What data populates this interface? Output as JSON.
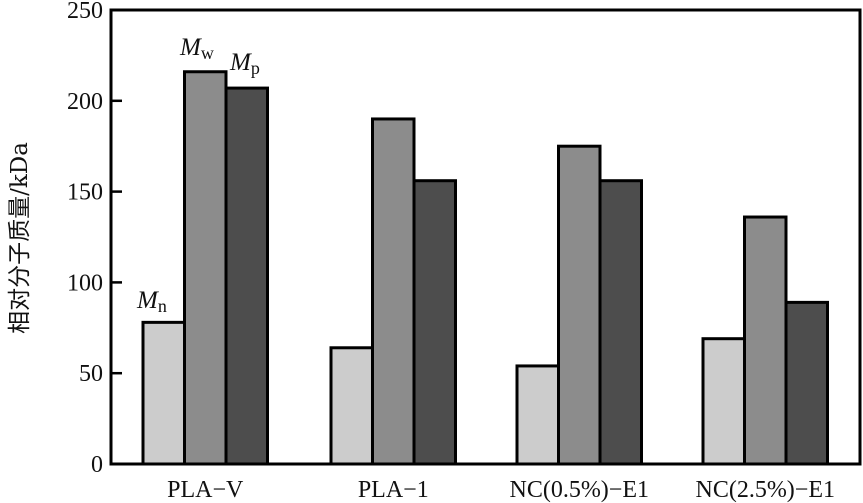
{
  "chart_data": {
    "type": "bar",
    "title": "",
    "xlabel": "",
    "ylabel": "相对分子质量/kDa",
    "ylim": [
      0,
      250
    ],
    "yticks": [
      0,
      50,
      100,
      150,
      200,
      250
    ],
    "grid": false,
    "categories": [
      "PLA−V",
      "PLA−1",
      "NC(0.5%)−E1",
      "NC(2.5%)−E1"
    ],
    "series": [
      {
        "name": "Mn",
        "symbol": "M",
        "subscript": "n",
        "color": "#cccccc",
        "values": [
          78,
          64,
          54,
          69
        ]
      },
      {
        "name": "Mw",
        "symbol": "M",
        "subscript": "w",
        "color": "#8c8c8c",
        "values": [
          216,
          190,
          175,
          136
        ]
      },
      {
        "name": "Mp",
        "symbol": "M",
        "subscript": "p",
        "color": "#4d4d4d",
        "values": [
          207,
          156,
          156,
          89
        ]
      }
    ],
    "legend": "annotations above first group bars"
  }
}
